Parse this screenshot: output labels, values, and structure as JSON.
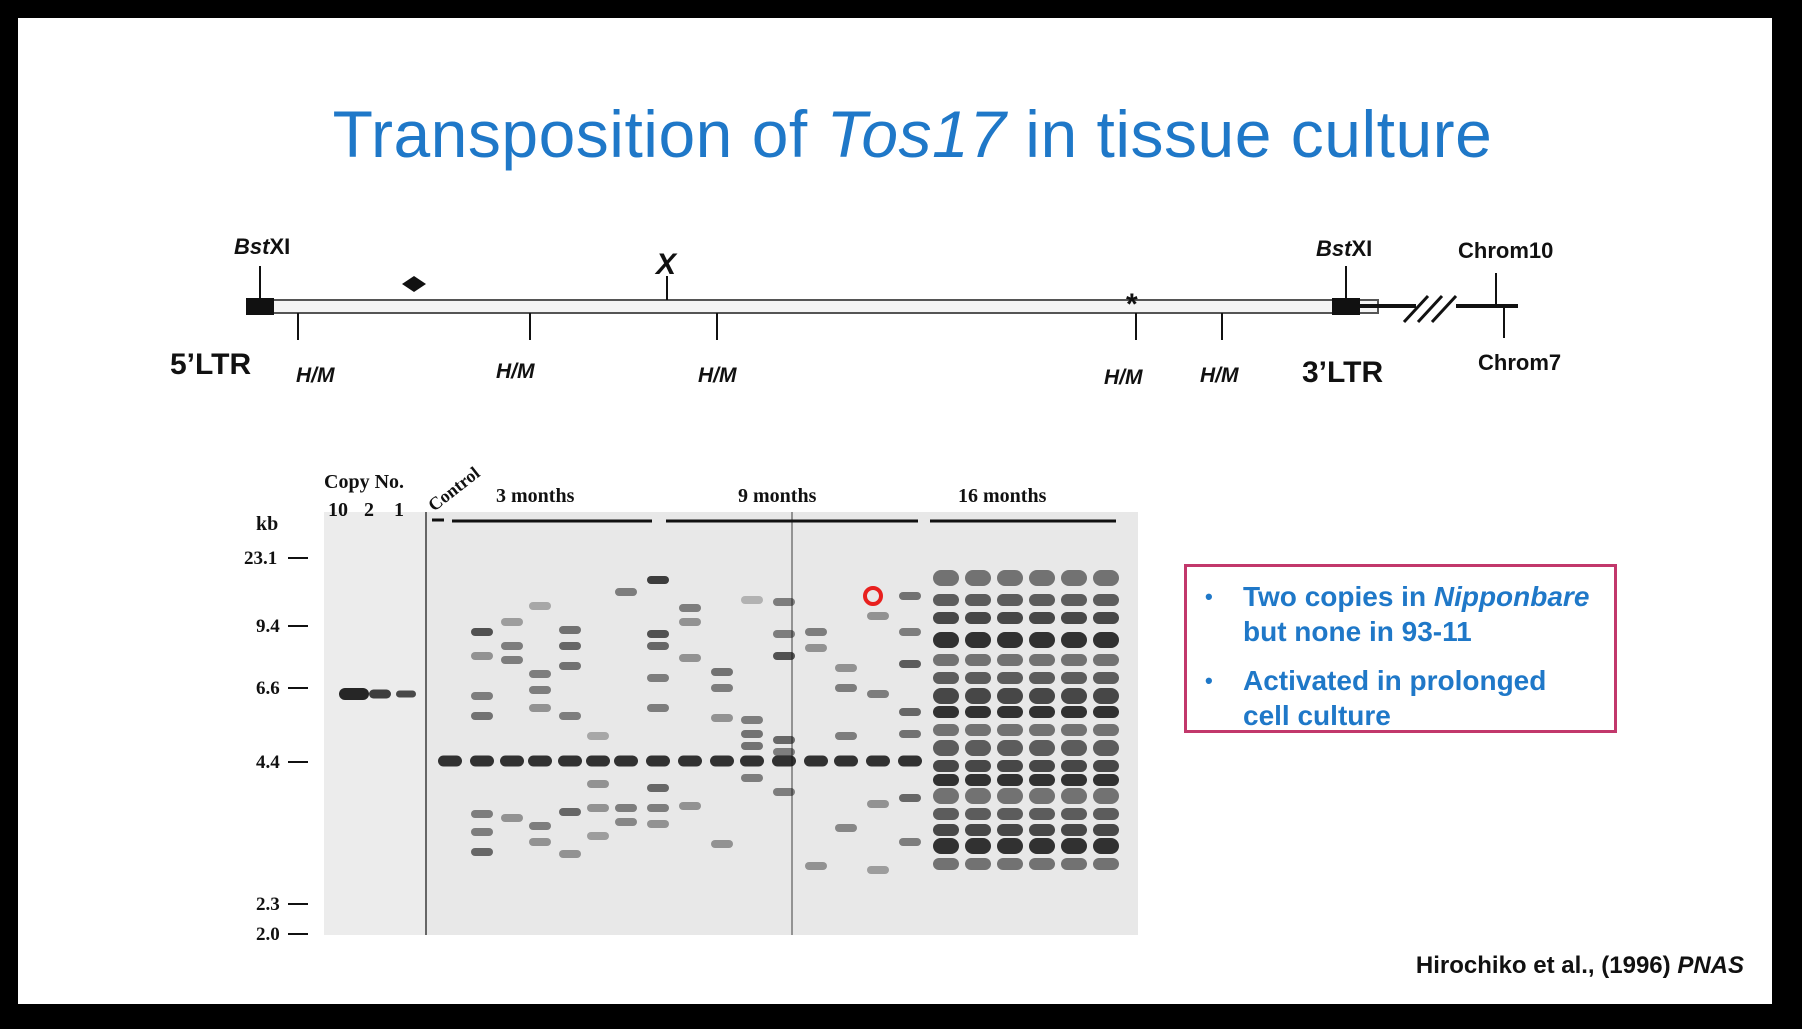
{
  "slide": {
    "title_prefix": "Transposition of ",
    "title_italic": "Tos17",
    "title_suffix": " in tissue culture"
  },
  "diagram": {
    "left_site_italic": "Bst",
    "left_site_suffix": "XI",
    "right_site_italic": "Bst",
    "right_site_suffix": "XI",
    "x_marker": "X",
    "asterisk": "*",
    "ltr5": "5’LTR",
    "ltr3": "3’LTR",
    "chrom_top": "Chrom10",
    "chrom_bottom": "Chrom7",
    "hm_labels": [
      "H/M",
      "H/M",
      "H/M",
      "H/M",
      "H/M"
    ]
  },
  "gel": {
    "copy_no": "Copy No.",
    "copy_values": [
      "10",
      "2",
      "1"
    ],
    "kb_label": "kb",
    "control": "Control",
    "groups": [
      "3 months",
      "9 months",
      "16 months"
    ],
    "kb_markers": [
      "23.1",
      "9.4",
      "6.6",
      "4.4",
      "2.3",
      "2.0"
    ]
  },
  "callout": {
    "bullet1_prefix": "Two copies in ",
    "bullet1_italic": "Nipponbare",
    "bullet1_suffix": " but none in 93-11",
    "bullet2": "Activated in prolonged cell culture",
    "border_color": "#c2386b",
    "text_color": "#1f78c8"
  },
  "citation": {
    "prefix": "Hirochiko et al., (1996) ",
    "italic": "PNAS"
  },
  "colors": {
    "title": "#1f78c8",
    "frame": "#000000",
    "slide_bg": "#ffffff"
  }
}
